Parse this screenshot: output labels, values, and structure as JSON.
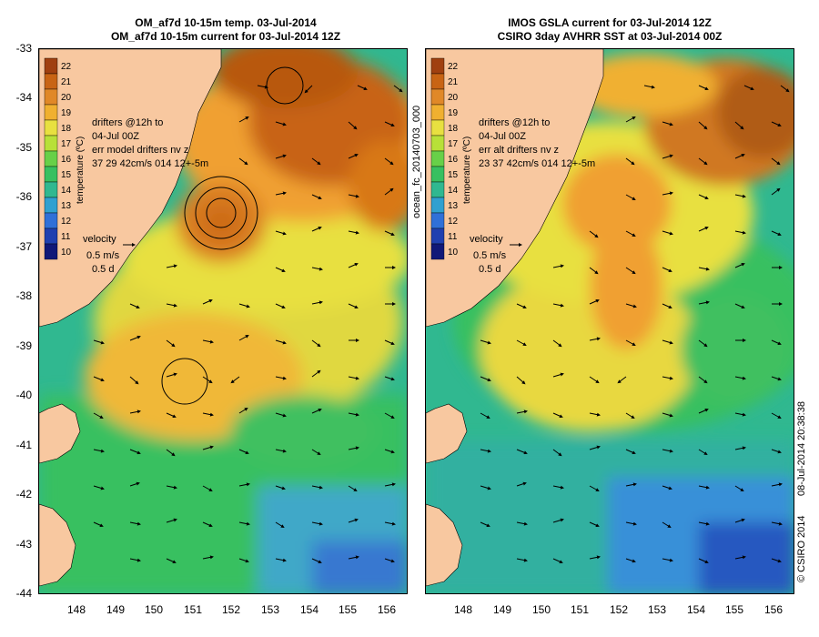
{
  "left_panel": {
    "title_line1": "OM_af7d 10-15m temp. 03-Jul-2014",
    "title_line2": "OM_af7d 10-15m current for 03-Jul-2014 12Z",
    "annot_line1": "drifters @12h to",
    "annot_line2": "04-Jul 00Z",
    "annot_line3": "err model drifters nv z",
    "annot_line4": "37   29    42cm/s 014 12+-5m",
    "velocity_label": "velocity",
    "velocity_speed": "0.5 m/s",
    "velocity_time": "0.5 d"
  },
  "right_panel": {
    "title_line1": "IMOS GSLA current for 03-Jul-2014 12Z",
    "title_line2": "CSIRO 3day AVHRR SST at 03-Jul-2014 00Z",
    "annot_line1": "drifters @12h to",
    "annot_line2": "04-Jul 00Z",
    "annot_line3": "err alt drifters nv z",
    "annot_line4": "23 37 42cm/s 014 12+-5m",
    "velocity_label": "velocity",
    "velocity_speed": "0.5 m/s",
    "velocity_time": "0.5 d"
  },
  "colorbar": {
    "label": "temperature (ºC)",
    "ticks": [
      "22",
      "21",
      "20",
      "19",
      "18",
      "17",
      "16",
      "15",
      "14",
      "13",
      "12",
      "11",
      "10"
    ]
  },
  "axes": {
    "lat_ticks": [
      "-33",
      "-34",
      "-35",
      "-36",
      "-37",
      "-38",
      "-39",
      "-40",
      "-41",
      "-42",
      "-43",
      "-44"
    ],
    "lon_ticks": [
      "148",
      "149",
      "150",
      "151",
      "152",
      "153",
      "154",
      "155",
      "156"
    ]
  },
  "side_label_middle": "ocean_fc_20140703_000",
  "side_label_right": "08-Jul-2014 20:38:38",
  "copyright": "© CSIRO 2014",
  "colors": {
    "land": "#f8c8a0",
    "warm": "#c86414",
    "orange": "#f0a030",
    "yellow": "#e8e040",
    "green": "#38c860",
    "teal": "#30b890",
    "blue": "#3898e0",
    "deep_blue": "#1040a0"
  }
}
